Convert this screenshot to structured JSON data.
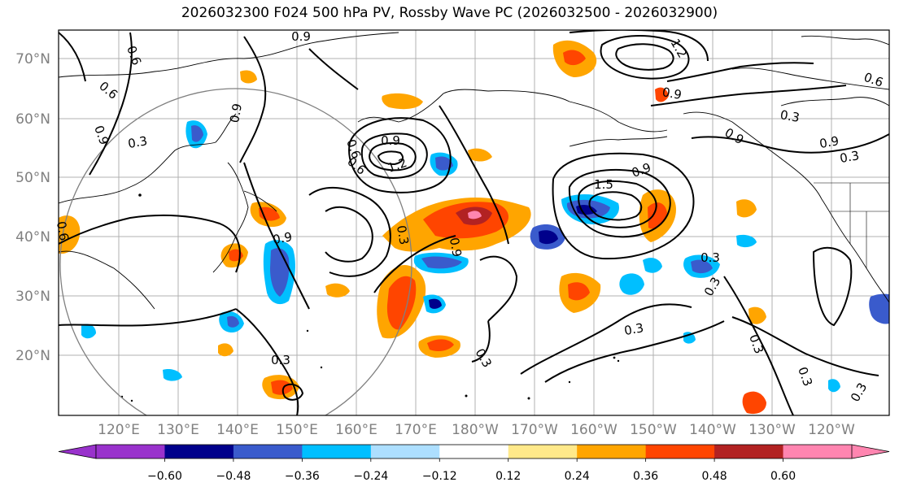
{
  "title": "2026032300 F024 500 hPa PV, Rossby Wave PC (2026032500 - 2026032900)",
  "lat_labels": [
    "70°N",
    "60°N",
    "50°N",
    "40°N",
    "30°N",
    "20°N"
  ],
  "lon_labels": [
    "120°E",
    "130°E",
    "140°E",
    "150°E",
    "160°E",
    "170°E",
    "180°W",
    "170°W",
    "160°W",
    "150°W",
    "140°W",
    "130°W",
    "120°W"
  ],
  "colorbar": {
    "colors": [
      "#9932CC",
      "#00008B",
      "#3A5BCC",
      "#00BFFF",
      "#ADDFFF",
      "#FFFFFF",
      "#FFE98A",
      "#FFA500",
      "#FF4500",
      "#B22222",
      "#FF85B0"
    ],
    "ticks": [
      "−0.60",
      "−0.48",
      "−0.36",
      "−0.24",
      "−0.12",
      "0.12",
      "0.24",
      "0.36",
      "0.48",
      "0.60"
    ]
  },
  "contour_labels": [
    "0.9",
    "0.6",
    "0.6",
    "0.3",
    "0.9",
    "0.6",
    "1.2",
    "0.9",
    "0.3",
    "0.9",
    "0.9",
    "1.2",
    "0.6",
    "0.3",
    "0.9",
    "0.3",
    "1.5",
    "0.9",
    "0.3",
    "0.3",
    "0.3",
    "0.3",
    "0.3",
    "0.3",
    "0.3",
    "0.6",
    "0.9",
    "0.3",
    "0.6",
    "0.9",
    "0.9"
  ]
}
